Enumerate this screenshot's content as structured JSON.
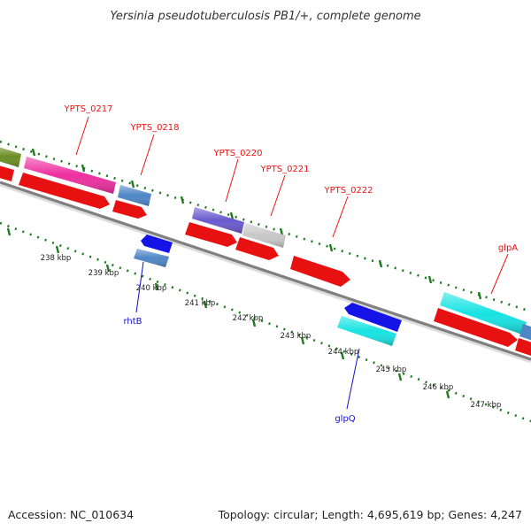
{
  "title": "Yersinia pseudotuberculosis PB1/+, complete genome",
  "footer": {
    "accession": "Accession: NC_010634",
    "topology": "Topology: circular; Length: 4,695,619 bp; Genes: 4,247"
  },
  "colors": {
    "backbone": "#888888",
    "dots": "#1f7a1f",
    "label_top": "#ee1111",
    "label_bottom": "#1111cc"
  },
  "kbp_labels": [
    "238 kbp",
    "239 kbp",
    "240 kbp",
    "241 kbp",
    "242 kbp",
    "243 kbp",
    "244 kbp",
    "245 kbp",
    "246 kbp",
    "247 kbp"
  ],
  "gene_labels": {
    "top": [
      "YPTS_0217",
      "YPTS_0218",
      "YPTS_0220",
      "YPTS_0221",
      "YPTS_0222",
      "glpA"
    ],
    "bottom": [
      "rhtB",
      "glpQ"
    ]
  }
}
